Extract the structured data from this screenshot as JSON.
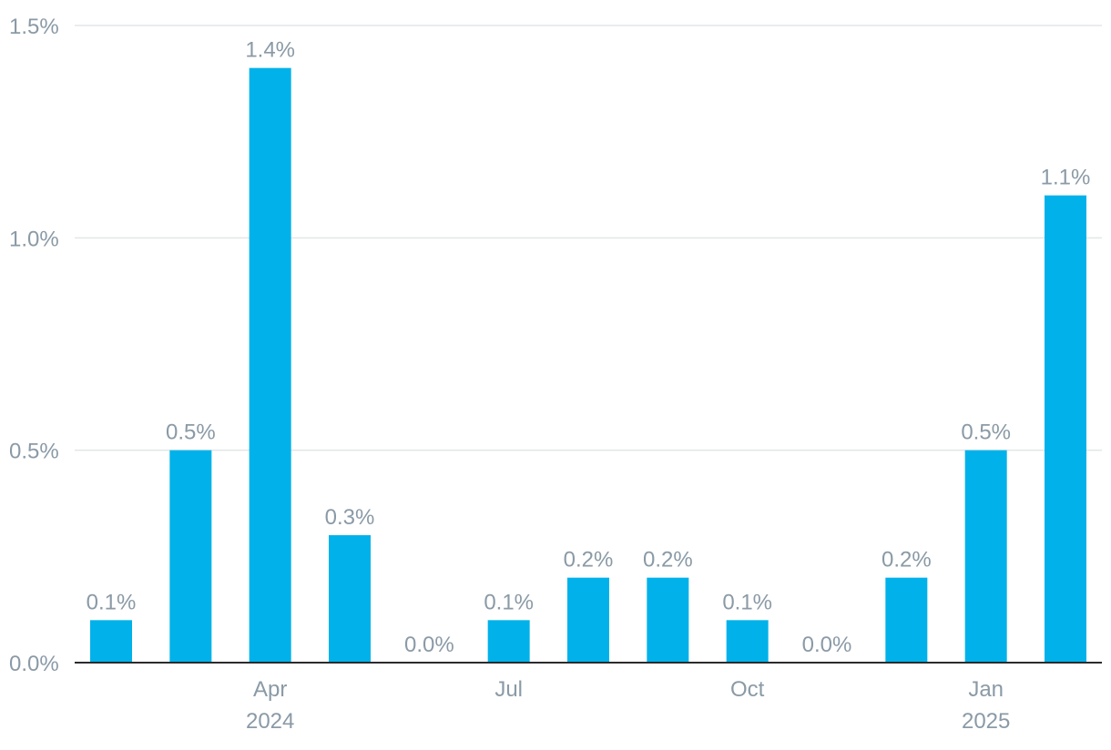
{
  "chart_data": {
    "type": "bar",
    "title": "",
    "xlabel": "",
    "ylabel": "",
    "ylim": [
      0,
      1.5
    ],
    "grid": true,
    "categories": [
      "2024-02",
      "2024-03",
      "2024-04",
      "2024-05",
      "2024-06",
      "2024-07",
      "2024-08",
      "2024-09",
      "2024-10",
      "2024-11",
      "2024-12",
      "2025-01",
      "2025-02"
    ],
    "values": [
      0.1,
      0.5,
      1.4,
      0.3,
      0.0,
      0.1,
      0.2,
      0.2,
      0.1,
      0.0,
      0.2,
      0.5,
      1.1
    ],
    "data_labels": [
      "0.1%",
      "0.5%",
      "1.4%",
      "0.3%",
      "0.0%",
      "0.1%",
      "0.2%",
      "0.2%",
      "0.1%",
      "0.0%",
      "0.2%",
      "0.5%",
      "1.1%"
    ],
    "y_ticks": [
      {
        "value": 0.0,
        "label": "0.0%"
      },
      {
        "value": 0.5,
        "label": "0.5%"
      },
      {
        "value": 1.0,
        "label": "1.0%"
      },
      {
        "value": 1.5,
        "label": "1.5%"
      }
    ],
    "x_ticks": [
      {
        "index": 2,
        "lines": [
          "Apr",
          "2024"
        ]
      },
      {
        "index": 5,
        "lines": [
          "Jul"
        ]
      },
      {
        "index": 8,
        "lines": [
          "Oct"
        ]
      },
      {
        "index": 11,
        "lines": [
          "Jan",
          "2025"
        ]
      }
    ],
    "colors": {
      "bar": "#00b2e9"
    }
  }
}
